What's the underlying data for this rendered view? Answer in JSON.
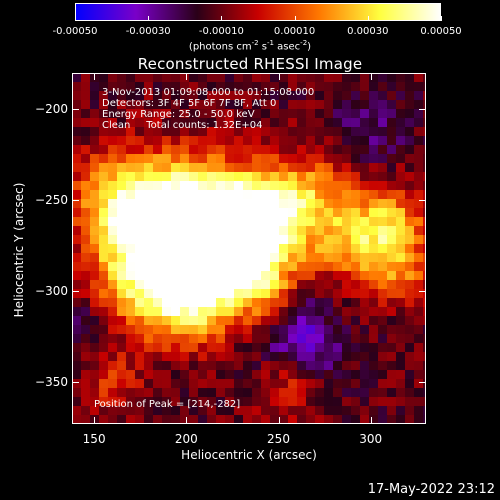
{
  "colorbar": {
    "ticks": [
      "-0.00050",
      "-0.00030",
      "-0.00010",
      "0.00010",
      "0.00030",
      "0.00050"
    ],
    "tick_values": [
      -0.0005,
      -0.0003,
      -0.0001,
      0.0001,
      0.0003,
      0.0005
    ],
    "range": [
      -0.0005,
      0.0005
    ],
    "units_label": "(photons cm",
    "units_exp1": "-2",
    "units_mid": " s",
    "units_exp2": "-1",
    "units_mid2": " asec",
    "units_exp3": "-2",
    "units_end": ")",
    "colormap": [
      "#0000ff",
      "#7a00c8",
      "#2a0018",
      "#c80000",
      "#ff7800",
      "#ffff40",
      "#ffffff"
    ]
  },
  "plot": {
    "title": "Reconstructed RHESSI Image",
    "xlabel": "Heliocentric X (arcsec)",
    "ylabel": "Heliocentric Y (arcsec)",
    "info_line1": "3-Nov-2013 01:09:08.000 to 01:15:08.000",
    "info_line2": "Detectors: 3F 4F 5F 6F 7F 8F, Att 0",
    "info_line3": "Energy Range: 25.0 - 50.0 keV",
    "info_line4": "Clean     Total counts: 1.32E+04",
    "peak_label": "Position of Peak = [214,-282]"
  },
  "footer": {
    "timestamp": "17-May-2022 23:12"
  },
  "chart_data": {
    "type": "heatmap",
    "title": "Reconstructed RHESSI Image",
    "xlabel": "Heliocentric X (arcsec)",
    "ylabel": "Heliocentric Y (arcsec)",
    "xlim": [
      138,
      330
    ],
    "ylim": [
      -373,
      -180
    ],
    "xticks": [
      150,
      200,
      250,
      300
    ],
    "yticks": [
      -200,
      -250,
      -300,
      -350
    ],
    "xtick_labels": [
      "150",
      "200",
      "250",
      "300"
    ],
    "ytick_labels": [
      "−200",
      "−250",
      "−300",
      "−350"
    ],
    "peak_position": [
      214,
      -282
    ],
    "grid": false
  }
}
